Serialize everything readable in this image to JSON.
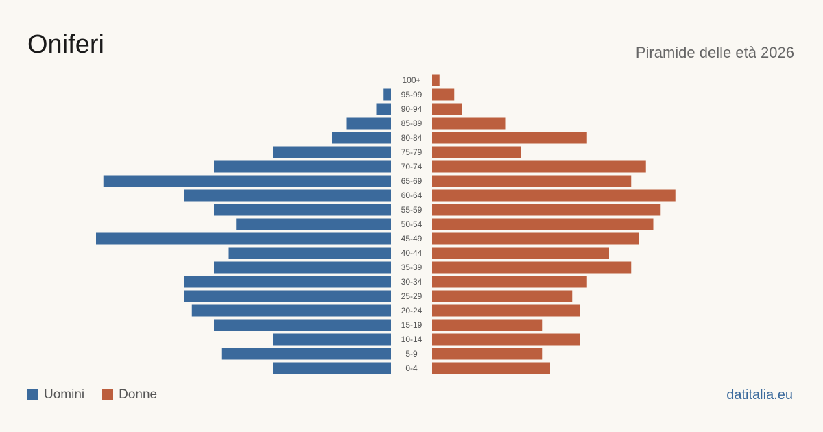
{
  "header": {
    "title": "Oniferi",
    "subtitle": "Piramide delle età 2026"
  },
  "legend": {
    "male_label": "Uomini",
    "female_label": "Donne"
  },
  "brand": "datitalia.eu",
  "colors": {
    "male": "#3b6a9c",
    "female": "#bc5f3e",
    "background": "#faf8f3",
    "label": "#555555"
  },
  "chart_data": {
    "type": "bar",
    "orientation": "horizontal",
    "categories": [
      "0-4",
      "5-9",
      "10-14",
      "15-19",
      "20-24",
      "25-29",
      "30-34",
      "35-39",
      "40-44",
      "45-49",
      "50-54",
      "55-59",
      "60-64",
      "65-69",
      "70-74",
      "75-79",
      "80-84",
      "85-89",
      "90-94",
      "95-99",
      "100+"
    ],
    "series": [
      {
        "name": "Uomini",
        "values": [
          16,
          23,
          16,
          24,
          27,
          28,
          28,
          24,
          22,
          40,
          21,
          24,
          28,
          39,
          24,
          16,
          8,
          6,
          2,
          1,
          0
        ]
      },
      {
        "name": "Donne",
        "values": [
          16,
          15,
          20,
          15,
          20,
          19,
          21,
          27,
          24,
          28,
          30,
          31,
          33,
          27,
          29,
          12,
          21,
          10,
          4,
          3,
          1
        ]
      }
    ],
    "max_value": 40,
    "title": "Oniferi",
    "subtitle": "Piramide delle età 2026",
    "xlabel": "",
    "ylabel": "",
    "grid": false,
    "legend_position": "bottom-left"
  }
}
